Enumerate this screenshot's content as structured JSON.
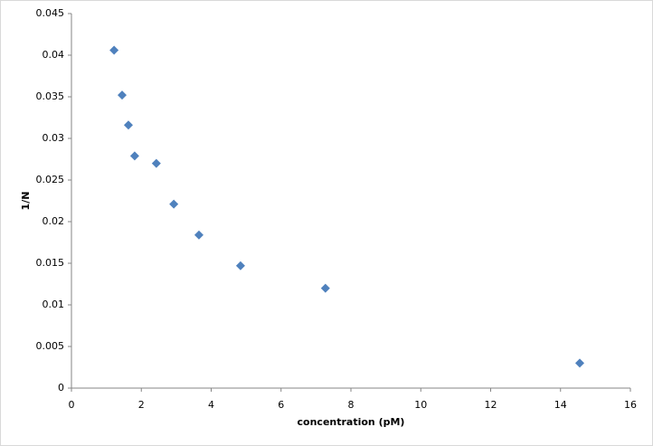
{
  "chart_data": {
    "type": "scatter",
    "xlabel": "concentration  (pM)",
    "ylabel": "1/N",
    "series": [
      {
        "name": "1/N",
        "color": "#4f81bd",
        "x": [
          1.22,
          1.45,
          1.63,
          1.81,
          2.43,
          2.93,
          3.65,
          4.84,
          7.27,
          14.55
        ],
        "values": [
          0.0406,
          0.0352,
          0.0316,
          0.0279,
          0.027,
          0.0221,
          0.0184,
          0.0147,
          0.012,
          0.003
        ]
      }
    ],
    "xlim": [
      0,
      16
    ],
    "xticks": [
      0,
      2,
      4,
      6,
      8,
      10,
      12,
      14,
      16
    ],
    "ylim": [
      0,
      0.045
    ],
    "yticks": [
      0,
      0.005,
      0.01,
      0.015,
      0.02,
      0.025,
      0.03,
      0.035,
      0.04,
      0.045
    ],
    "grid": false
  }
}
